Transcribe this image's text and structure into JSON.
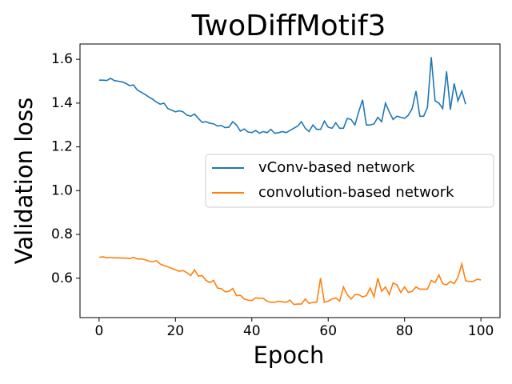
{
  "chart_data": {
    "type": "line",
    "title": "TwoDiffMotif3",
    "xlabel": "Epoch",
    "ylabel": "Validation loss",
    "xlim": [
      -5,
      105
    ],
    "xticks": [
      0,
      20,
      40,
      60,
      80,
      100
    ],
    "ylim": [
      0.42,
      1.67
    ],
    "yticks": [
      0.6,
      0.8,
      {
        "value": 1,
        "label": "1.0"
      },
      1.2,
      1.4,
      1.6
    ],
    "legend": "center right",
    "grid": false,
    "series": [
      {
        "name": "vConv-based network",
        "color": "#1f77b4",
        "x": [
          0,
          1,
          2,
          3,
          4,
          5,
          6,
          7,
          8,
          9,
          10,
          11,
          12,
          13,
          14,
          15,
          16,
          17,
          18,
          19,
          20,
          21,
          22,
          23,
          24,
          25,
          26,
          27,
          28,
          29,
          30,
          31,
          32,
          33,
          34,
          35,
          36,
          37,
          38,
          39,
          40,
          41,
          42,
          43,
          44,
          45,
          46,
          47,
          48,
          49,
          50,
          51,
          52,
          53,
          54,
          55,
          56,
          57,
          58,
          59,
          60,
          61,
          62,
          63,
          64,
          65,
          66,
          67,
          68,
          69,
          70,
          71,
          72,
          73,
          74,
          75,
          76,
          77,
          78,
          79,
          80,
          81,
          82,
          83,
          84,
          85,
          86,
          87,
          88,
          89,
          90,
          91,
          92,
          93,
          94,
          95,
          96
        ],
        "values": [
          1.505,
          1.505,
          1.503,
          1.513,
          1.503,
          1.5,
          1.497,
          1.49,
          1.48,
          1.483,
          1.46,
          1.45,
          1.44,
          1.428,
          1.418,
          1.405,
          1.395,
          1.4,
          1.375,
          1.368,
          1.36,
          1.365,
          1.36,
          1.345,
          1.34,
          1.35,
          1.33,
          1.312,
          1.315,
          1.308,
          1.305,
          1.295,
          1.298,
          1.288,
          1.29,
          1.315,
          1.3,
          1.272,
          1.282,
          1.268,
          1.265,
          1.275,
          1.262,
          1.27,
          1.265,
          1.28,
          1.262,
          1.265,
          1.27,
          1.265,
          1.275,
          1.285,
          1.295,
          1.315,
          1.285,
          1.27,
          1.3,
          1.28,
          1.28,
          1.318,
          1.29,
          1.285,
          1.31,
          1.285,
          1.285,
          1.33,
          1.325,
          1.3,
          1.36,
          1.415,
          1.3,
          1.3,
          1.305,
          1.335,
          1.315,
          1.4,
          1.36,
          1.325,
          1.34,
          1.335,
          1.33,
          1.345,
          1.375,
          1.455,
          1.34,
          1.34,
          1.38,
          1.61,
          1.41,
          1.4,
          1.375,
          1.545,
          1.37,
          1.49,
          1.41,
          1.455,
          1.395
        ]
      },
      {
        "name": "convolution-based network",
        "color": "#ff7f0e",
        "x": [
          0,
          1,
          2,
          3,
          4,
          5,
          6,
          7,
          8,
          9,
          10,
          11,
          12,
          13,
          14,
          15,
          16,
          17,
          18,
          19,
          20,
          21,
          22,
          23,
          24,
          25,
          26,
          27,
          28,
          29,
          30,
          31,
          32,
          33,
          34,
          35,
          36,
          37,
          38,
          39,
          40,
          41,
          42,
          43,
          44,
          45,
          46,
          47,
          48,
          49,
          50,
          51,
          52,
          53,
          54,
          55,
          56,
          57,
          58,
          59,
          60,
          61,
          62,
          63,
          64,
          65,
          66,
          67,
          68,
          69,
          70,
          71,
          72,
          73,
          74,
          75,
          76,
          77,
          78,
          79,
          80,
          81,
          82,
          83,
          84,
          85,
          86,
          87,
          88,
          89,
          90,
          91,
          92,
          93,
          94,
          95,
          96,
          97,
          98,
          99,
          100
        ],
        "values": [
          0.695,
          0.698,
          0.693,
          0.695,
          0.693,
          0.693,
          0.692,
          0.692,
          0.69,
          0.695,
          0.688,
          0.688,
          0.685,
          0.678,
          0.675,
          0.68,
          0.665,
          0.658,
          0.652,
          0.645,
          0.638,
          0.632,
          0.635,
          0.625,
          0.612,
          0.638,
          0.61,
          0.612,
          0.59,
          0.58,
          0.59,
          0.555,
          0.552,
          0.538,
          0.54,
          0.553,
          0.52,
          0.522,
          0.505,
          0.5,
          0.498,
          0.51,
          0.508,
          0.508,
          0.495,
          0.49,
          0.49,
          0.495,
          0.492,
          0.49,
          0.5,
          0.48,
          0.482,
          0.482,
          0.505,
          0.485,
          0.49,
          0.49,
          0.6,
          0.49,
          0.495,
          0.505,
          0.51,
          0.495,
          0.56,
          0.525,
          0.505,
          0.525,
          0.525,
          0.515,
          0.52,
          0.555,
          0.515,
          0.6,
          0.54,
          0.56,
          0.525,
          0.578,
          0.57,
          0.535,
          0.56,
          0.535,
          0.54,
          0.56,
          0.55,
          0.55,
          0.55,
          0.59,
          0.58,
          0.615,
          0.575,
          0.57,
          0.585,
          0.575,
          0.605,
          0.665,
          0.588,
          0.585,
          0.585,
          0.595,
          0.592
        ]
      }
    ]
  }
}
